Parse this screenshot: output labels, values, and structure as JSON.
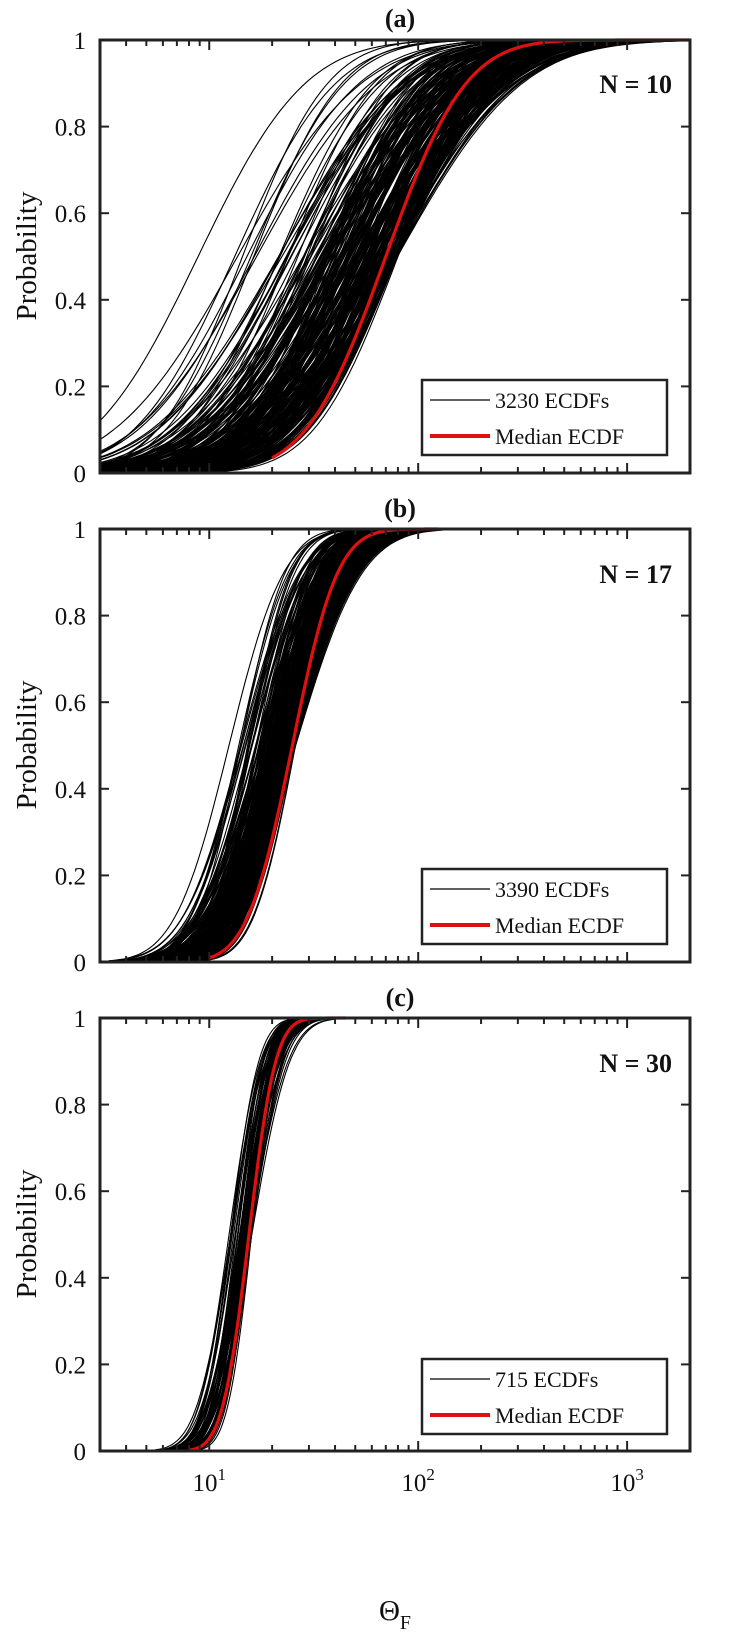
{
  "chart_data": [
    {
      "type": "line",
      "panel_label": "(a)",
      "annotation": "N = 10",
      "ylabel": "Probability",
      "xscale": "log",
      "xlim": [
        3,
        2000
      ],
      "ylim": [
        0,
        1
      ],
      "yticks": [
        "0",
        "0.2",
        "0.4",
        "0.6",
        "0.8",
        "1"
      ],
      "xticks": [],
      "xlabel": "",
      "legend": {
        "location": "bottom-right",
        "entries": [
          "3230 ECDFs",
          "Median ECDF"
        ]
      },
      "series": [
        {
          "name": "3230 ECDFs",
          "color": "#000000",
          "count": 3230,
          "median_range": [
            8,
            80
          ],
          "spread_log_sd": 0.42
        },
        {
          "name": "Median ECDF",
          "color": "#e01010",
          "median": 70,
          "spread_log_sd": 0.3,
          "support": [
            20,
            2000
          ]
        }
      ]
    },
    {
      "type": "line",
      "panel_label": "(b)",
      "annotation": "N = 17",
      "ylabel": "Probability",
      "xscale": "log",
      "xlim": [
        3,
        2000
      ],
      "ylim": [
        0,
        1
      ],
      "yticks": [
        "0",
        "0.2",
        "0.4",
        "0.6",
        "0.8",
        "1"
      ],
      "xticks": [],
      "xlabel": "",
      "legend": {
        "location": "bottom-right",
        "entries": [
          "3390 ECDFs",
          "Median ECDF"
        ]
      },
      "series": [
        {
          "name": "3390 ECDFs",
          "color": "#000000",
          "count": 3390,
          "median_range": [
            12,
            26
          ],
          "spread_log_sd": 0.21
        },
        {
          "name": "Median ECDF",
          "color": "#e01010",
          "median": 25,
          "spread_log_sd": 0.17,
          "support": [
            10,
            125
          ]
        }
      ]
    },
    {
      "type": "line",
      "panel_label": "(c)",
      "annotation": "N = 30",
      "ylabel": "Probability",
      "xscale": "log",
      "xlim": [
        3,
        2000
      ],
      "ylim": [
        0,
        1
      ],
      "yticks": [
        "0",
        "0.2",
        "0.4",
        "0.6",
        "0.8",
        "1"
      ],
      "xticks": [
        "10",
        "10",
        "10"
      ],
      "xtick_exponents": [
        "1",
        "2",
        "3"
      ],
      "xtick_values": [
        10,
        100,
        1000
      ],
      "xlabel": "Θ",
      "xlabel_sub": "F",
      "legend": {
        "location": "bottom-right",
        "entries": [
          "715 ECDFs",
          "Median ECDF"
        ]
      },
      "series": [
        {
          "name": "715 ECDFs",
          "color": "#000000",
          "count": 715,
          "median_range": [
            11,
            16
          ],
          "spread_log_sd": 0.12
        },
        {
          "name": "Median ECDF",
          "color": "#e01010",
          "median": 15.5,
          "spread_log_sd": 0.1,
          "support": [
            8,
            45
          ]
        }
      ]
    }
  ]
}
